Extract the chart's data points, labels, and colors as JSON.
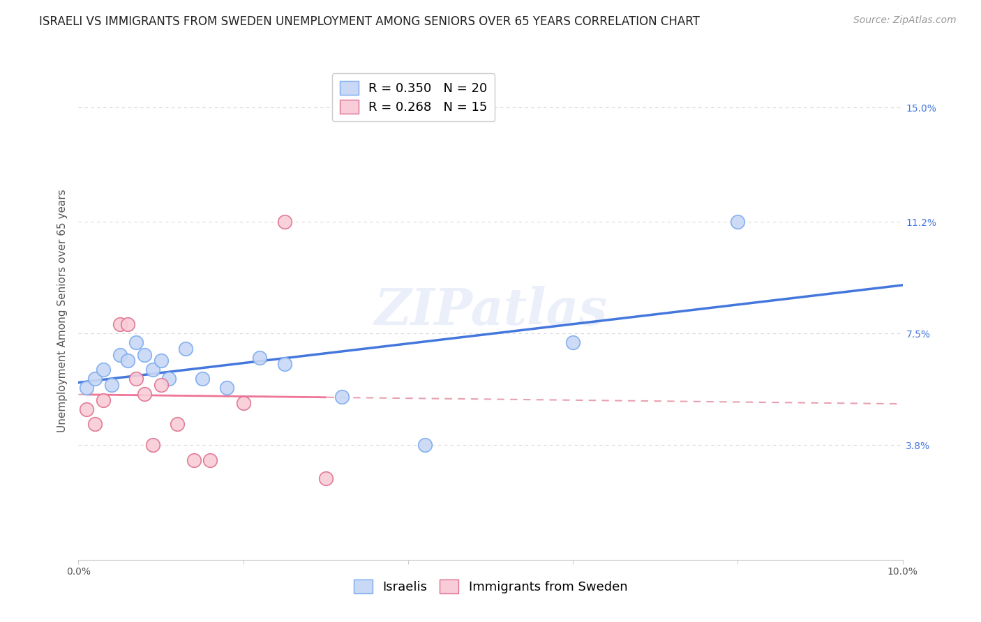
{
  "title": "ISRAELI VS IMMIGRANTS FROM SWEDEN UNEMPLOYMENT AMONG SENIORS OVER 65 YEARS CORRELATION CHART",
  "source": "Source: ZipAtlas.com",
  "ylabel": "Unemployment Among Seniors over 65 years",
  "xlim": [
    0.0,
    0.1
  ],
  "ylim": [
    0.0,
    0.165
  ],
  "ytick_positions": [
    0.038,
    0.075,
    0.112,
    0.15
  ],
  "ytick_labels": [
    "3.8%",
    "7.5%",
    "11.2%",
    "15.0%"
  ],
  "watermark": "ZIPatlas",
  "background_color": "#ffffff",
  "grid_color": "#d8d8d8",
  "israeli_x": [
    0.001,
    0.002,
    0.003,
    0.004,
    0.005,
    0.006,
    0.007,
    0.008,
    0.009,
    0.01,
    0.011,
    0.013,
    0.015,
    0.018,
    0.022,
    0.025,
    0.032,
    0.042,
    0.06,
    0.08
  ],
  "israeli_y": [
    0.057,
    0.06,
    0.063,
    0.058,
    0.068,
    0.066,
    0.072,
    0.068,
    0.063,
    0.066,
    0.06,
    0.07,
    0.06,
    0.057,
    0.067,
    0.065,
    0.054,
    0.038,
    0.072,
    0.112
  ],
  "israeli_color": "#c8d8f5",
  "israeli_edgecolor": "#7aaaee",
  "israeli_R": 0.35,
  "israeli_N": 20,
  "swedish_x": [
    0.001,
    0.002,
    0.003,
    0.005,
    0.006,
    0.007,
    0.008,
    0.009,
    0.01,
    0.012,
    0.014,
    0.016,
    0.02,
    0.025,
    0.03
  ],
  "swedish_y": [
    0.05,
    0.045,
    0.053,
    0.078,
    0.078,
    0.06,
    0.055,
    0.038,
    0.058,
    0.045,
    0.033,
    0.033,
    0.052,
    0.112,
    0.027
  ],
  "swedish_color": "#f8ccd8",
  "swedish_edgecolor": "#e07090",
  "swedish_R": 0.268,
  "swedish_N": 15,
  "israeli_line_color": "#4477dd",
  "swedish_line_color": "#ee7799",
  "swedish_line_color_dashed": "#e8a0b0",
  "legend_box_color_israeli": "#c8d8f5",
  "legend_box_edgecolor_israeli": "#7aaaee",
  "legend_box_color_swedish": "#f8ccd8",
  "legend_box_edgecolor_swedish": "#e07090",
  "title_fontsize": 12,
  "source_fontsize": 10,
  "axis_label_fontsize": 11,
  "tick_fontsize": 10,
  "legend_fontsize": 13,
  "watermark_fontsize": 52,
  "watermark_color": "#ccd8f0",
  "watermark_alpha": 0.4
}
